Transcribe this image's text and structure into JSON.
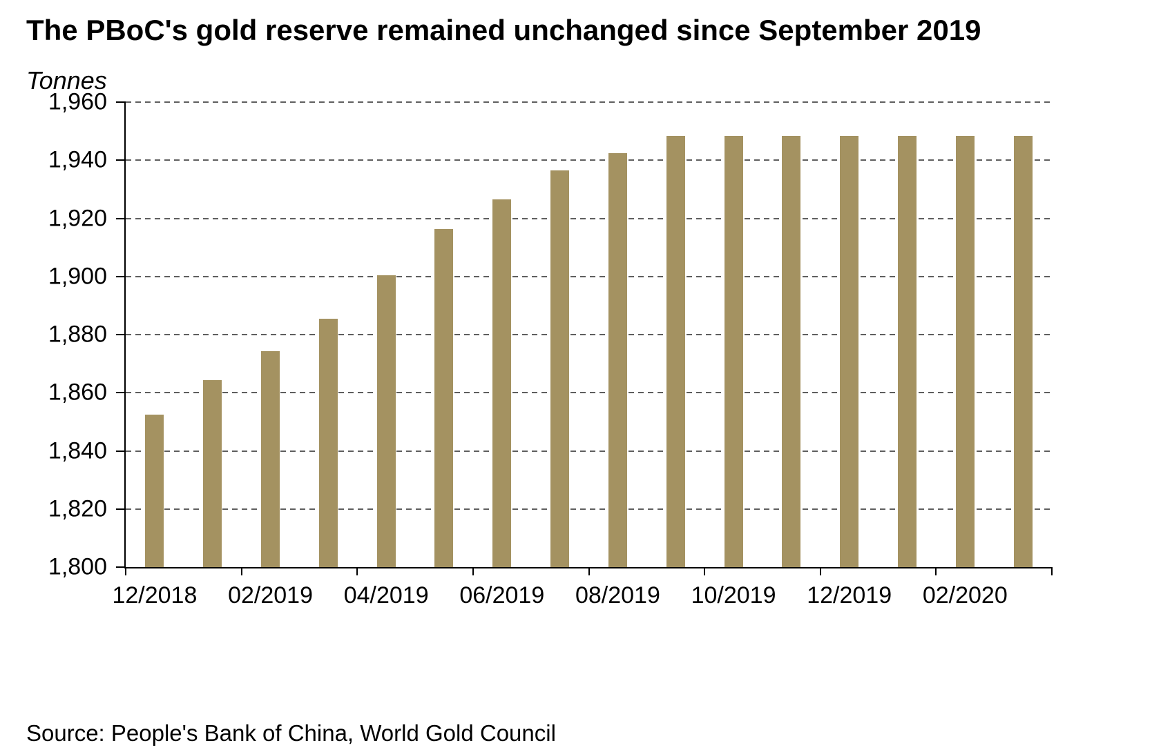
{
  "chart_data": {
    "type": "bar",
    "title": "The PBoC's gold reserve remained unchanged since September 2019",
    "ylabel": "Tonnes",
    "source": "Source: People's Bank of China, World Gold Council",
    "categories": [
      "12/2018",
      "01/2019",
      "02/2019",
      "03/2019",
      "04/2019",
      "05/2019",
      "06/2019",
      "07/2019",
      "08/2019",
      "09/2019",
      "10/2019",
      "11/2019",
      "12/2019",
      "01/2020",
      "02/2020",
      "03/2020"
    ],
    "values": [
      1852.5,
      1864.3,
      1874.3,
      1885.5,
      1900.4,
      1916.3,
      1926.6,
      1936.5,
      1942.4,
      1948.3,
      1948.3,
      1948.3,
      1948.3,
      1948.3,
      1948.3,
      1948.3
    ],
    "ylim": [
      1800,
      1960
    ],
    "ytick_step": 20,
    "ytick_labels": [
      "1,960",
      "1,940",
      "1,920",
      "1,900",
      "1,880",
      "1,860",
      "1,840",
      "1,820",
      "1,800"
    ],
    "xtick_labels": [
      "12/2018",
      "02/2019",
      "04/2019",
      "06/2019",
      "08/2019",
      "10/2019",
      "12/2019",
      "02/2020"
    ],
    "xtick_label_every": 2,
    "grid": "dashed-horizontal",
    "legend": "none",
    "bar_color": "#A49261",
    "grid_color": "#5e5e5e",
    "axis_color": "#000000",
    "text_color": "#000000"
  }
}
